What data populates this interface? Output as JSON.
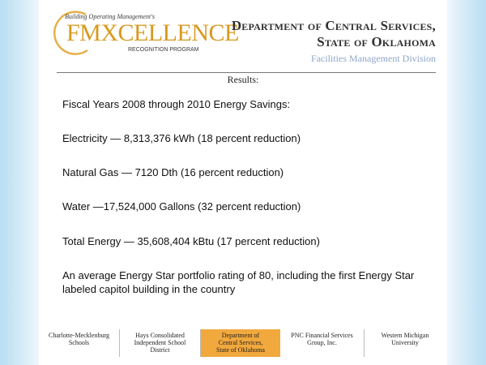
{
  "logo": {
    "top_text": "Building Operating Management's",
    "main_text": "FMXCELLENCE",
    "sub_text": "RECOGNITION PROGRAM"
  },
  "header": {
    "dept_line1": "Department of Central Services,",
    "dept_line2": "State of Oklahoma",
    "division": "Facilities Management Division"
  },
  "section_title": "Results:",
  "content": {
    "intro": "Fiscal Years 2008 through 2010 Energy Savings:",
    "electricity": "Electricity — 8,313,376 kWh (18 percent reduction)",
    "natural_gas": "Natural Gas — 7120 Dth (16 percent reduction)",
    "water": "Water —17,524,000 Gallons (32 percent reduction)",
    "total_energy": "Total Energy — 35,608,404 kBtu (17 percent reduction)",
    "energy_star": "An average Energy Star portfolio rating of 80, including the first Energy Star labeled capitol building in the country"
  },
  "footer": {
    "orgs": [
      {
        "line1": "Charlotte-Mecklenburg",
        "line2": "Schools",
        "line3": ""
      },
      {
        "line1": "Hays Consolidated",
        "line2": "Independent School",
        "line3": "District"
      },
      {
        "line1": "Department of",
        "line2": "Central Services,",
        "line3": "State of Oklahoma"
      },
      {
        "line1": "PNC Financial Services",
        "line2": "Group, Inc.",
        "line3": ""
      },
      {
        "line1": "Western Michigan",
        "line2": "University",
        "line3": ""
      }
    ],
    "highlight_color": "#f1a83d"
  },
  "colors": {
    "logo_gold": "#d79a1e",
    "division_blue": "#8fa6c9",
    "side_gradient": "#b9def3"
  }
}
